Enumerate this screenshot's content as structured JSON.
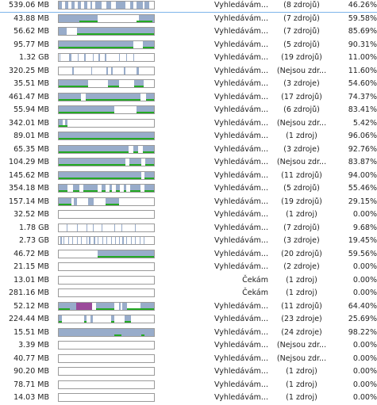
{
  "colors": {
    "segment": "#98acca",
    "segment_alt": "#9b4a9a",
    "progress": "#23a923",
    "selection_line": "#7eb4ea"
  },
  "rows": [
    {
      "size": "539.06 MB",
      "status": "Vyhledávám...",
      "sources": "(8 zdrojů)",
      "percent": "46.26%",
      "sel": true,
      "segs": [
        [
          0,
          0.03
        ],
        [
          0.07,
          0.1
        ],
        [
          0.13,
          0.17
        ],
        [
          0.2,
          0.23
        ],
        [
          0.27,
          0.3
        ],
        [
          0.33,
          0.35
        ],
        [
          0.38,
          0.45
        ],
        [
          0.5,
          0.55
        ],
        [
          0.6,
          0.7
        ],
        [
          0.75,
          0.78
        ],
        [
          0.82,
          0.88
        ],
        [
          0.9,
          0.95
        ]
      ],
      "green": []
    },
    {
      "size": "43.88 MB",
      "status": "Vyhledávám...",
      "sources": "(7 zdrojů)",
      "percent": "59.58%",
      "segs": [
        [
          0,
          0.41
        ],
        [
          0.84,
          1
        ]
      ],
      "green": [
        [
          0.22,
          0.41
        ],
        [
          0.82,
          0.98
        ]
      ]
    },
    {
      "size": "56.62 MB",
      "status": "Vyhledávám...",
      "sources": "(7 zdrojů)",
      "percent": "85.69%",
      "segs": [
        [
          0,
          0.08
        ],
        [
          0.19,
          1
        ]
      ],
      "green": [
        [
          0.19,
          1
        ]
      ]
    },
    {
      "size": "95.77 MB",
      "status": "Vyhledávám...",
      "sources": "(5 zdrojů)",
      "percent": "90.31%",
      "segs": [
        [
          0,
          0.78
        ],
        [
          0.88,
          1
        ]
      ],
      "green": [
        [
          0,
          0.78
        ],
        [
          0.88,
          1
        ]
      ]
    },
    {
      "size": "1.32 GB",
      "status": "Vyhledávám...",
      "sources": "(19 zdrojů)",
      "percent": "11.00%",
      "segs": [
        [
          0.01,
          0.02
        ],
        [
          0.11,
          0.13
        ],
        [
          0.2,
          0.21
        ],
        [
          0.27,
          0.28
        ],
        [
          0.36,
          0.37
        ],
        [
          0.42,
          0.43
        ],
        [
          0.48,
          0.5
        ],
        [
          0.63,
          0.64
        ],
        [
          0.71,
          0.72
        ],
        [
          0.78,
          0.79
        ]
      ],
      "green": []
    },
    {
      "size": "320.25 MB",
      "status": "Vyhledávám...",
      "sources": "(Nejsou zdr...",
      "percent": "11.60%",
      "segs": [
        [
          0.14,
          0.16
        ],
        [
          0.34,
          0.35
        ],
        [
          0.5,
          0.52
        ],
        [
          0.55,
          0.57
        ],
        [
          0.68,
          0.7
        ],
        [
          0.82,
          0.84
        ]
      ],
      "green": []
    },
    {
      "size": "35.51 MB",
      "status": "Vyhledávám...",
      "sources": "(3 zdroje)",
      "percent": "54.60%",
      "segs": [
        [
          0,
          0.31
        ],
        [
          0.52,
          0.63
        ],
        [
          0.79,
          0.89
        ]
      ],
      "green": [
        [
          0,
          0.31
        ],
        [
          0.52,
          0.63
        ],
        [
          0.79,
          0.89
        ]
      ]
    },
    {
      "size": "461.47 MB",
      "status": "Vyhledávám...",
      "sources": "(17 zdrojů)",
      "percent": "74.37%",
      "segs": [
        [
          0,
          0.23
        ],
        [
          0.28,
          0.86
        ],
        [
          0.92,
          1
        ]
      ],
      "green": [
        [
          0,
          0.23
        ],
        [
          0.28,
          0.86
        ],
        [
          0.92,
          1
        ]
      ]
    },
    {
      "size": "55.94 MB",
      "status": "Vyhledávám...",
      "sources": "(6 zdrojů)",
      "percent": "83.41%",
      "segs": [
        [
          0,
          0.58
        ],
        [
          0.82,
          1
        ]
      ],
      "green": [
        [
          0,
          0.58
        ],
        [
          0.82,
          1
        ]
      ]
    },
    {
      "size": "342.01 MB",
      "status": "Vyhledávám...",
      "sources": "(Nejsou zdr...",
      "percent": "5.42%",
      "segs": [
        [
          0,
          0.04
        ],
        [
          0.07,
          0.09
        ]
      ],
      "green": [
        [
          0,
          0.09
        ]
      ]
    },
    {
      "size": "89.01 MB",
      "status": "Vyhledávám...",
      "sources": "(1 zdroj)",
      "percent": "96.06%",
      "segs": [
        [
          0,
          1
        ]
      ],
      "green": [
        [
          0,
          1
        ]
      ]
    },
    {
      "size": "65.35 MB",
      "status": "Vyhledávám...",
      "sources": "(3 zdroje)",
      "percent": "92.76%",
      "segs": [
        [
          0,
          0.73
        ],
        [
          0.78,
          0.83
        ],
        [
          0.88,
          1
        ]
      ],
      "green": [
        [
          0,
          0.73
        ],
        [
          0.78,
          0.83
        ],
        [
          0.88,
          1
        ]
      ]
    },
    {
      "size": "104.29 MB",
      "status": "Vyhledávám...",
      "sources": "(Nejsou zdr...",
      "percent": "83.87%",
      "segs": [
        [
          0,
          0.7
        ],
        [
          0.74,
          0.87
        ],
        [
          0.91,
          1
        ]
      ],
      "green": [
        [
          0,
          0.7
        ],
        [
          0.74,
          0.87
        ],
        [
          0.91,
          1
        ]
      ]
    },
    {
      "size": "145.62 MB",
      "status": "Vyhledávám...",
      "sources": "(11 zdrojů)",
      "percent": "94.00%",
      "segs": [
        [
          0,
          0.87
        ],
        [
          0.9,
          1
        ]
      ],
      "green": [
        [
          0,
          0.87
        ],
        [
          0.9,
          1
        ]
      ]
    },
    {
      "size": "354.18 MB",
      "status": "Vyhledávám...",
      "sources": "(5 zdrojů)",
      "percent": "55.46%",
      "segs": [
        [
          0,
          0.09
        ],
        [
          0.15,
          0.22
        ],
        [
          0.26,
          0.41
        ],
        [
          0.45,
          0.49
        ],
        [
          0.53,
          0.56
        ],
        [
          0.6,
          0.64
        ],
        [
          0.68,
          0.71
        ],
        [
          0.75,
          0.86
        ],
        [
          0.9,
          1
        ]
      ],
      "green": [
        [
          0,
          0.09
        ],
        [
          0.15,
          0.22
        ],
        [
          0.26,
          0.41
        ],
        [
          0.45,
          0.49
        ],
        [
          0.53,
          0.56
        ],
        [
          0.6,
          0.64
        ],
        [
          0.68,
          0.71
        ],
        [
          0.75,
          0.86
        ],
        [
          0.9,
          1
        ]
      ]
    },
    {
      "size": "157.14 MB",
      "status": "Vyhledávám...",
      "sources": "(19 zdrojů)",
      "percent": "29.15%",
      "segs": [
        [
          0,
          0.13
        ],
        [
          0.16,
          0.19
        ],
        [
          0.31,
          0.37
        ],
        [
          0.49,
          0.63
        ]
      ],
      "green": [
        [
          0,
          0.13
        ],
        [
          0.49,
          0.63
        ]
      ]
    },
    {
      "size": "32.52 MB",
      "status": "Vyhledávám...",
      "sources": "(1 zdroj)",
      "percent": "0.00%",
      "segs": [],
      "green": []
    },
    {
      "size": "1.78 GB",
      "status": "Vyhledávám...",
      "sources": "(7 zdrojů)",
      "percent": "9.68%",
      "segs": [
        [
          0.08,
          0.09
        ],
        [
          0.19,
          0.2
        ],
        [
          0.29,
          0.3
        ],
        [
          0.36,
          0.37
        ],
        [
          0.45,
          0.46
        ],
        [
          0.58,
          0.59
        ],
        [
          0.66,
          0.67
        ],
        [
          0.8,
          0.81
        ]
      ],
      "green": []
    },
    {
      "size": "2.73 GB",
      "status": "Vyhledávám...",
      "sources": "(3 zdroje)",
      "percent": "19.45%",
      "segs": [
        [
          0.02,
          0.03
        ],
        [
          0.05,
          0.06
        ],
        [
          0.1,
          0.11
        ],
        [
          0.14,
          0.15
        ],
        [
          0.19,
          0.2
        ],
        [
          0.23,
          0.24
        ],
        [
          0.29,
          0.3
        ],
        [
          0.32,
          0.33
        ],
        [
          0.37,
          0.38
        ],
        [
          0.41,
          0.42
        ],
        [
          0.46,
          0.47
        ],
        [
          0.5,
          0.51
        ],
        [
          0.55,
          0.56
        ],
        [
          0.59,
          0.6
        ],
        [
          0.63,
          0.64
        ],
        [
          0.67,
          0.68
        ],
        [
          0.71,
          0.72
        ],
        [
          0.76,
          0.77
        ],
        [
          0.8,
          0.81
        ],
        [
          0.85,
          0.86
        ],
        [
          0.89,
          0.9
        ]
      ],
      "green": []
    },
    {
      "size": "46.72 MB",
      "status": "Vyhledávám...",
      "sources": "(20 zdrojů)",
      "percent": "59.56%",
      "segs": [
        [
          0.41,
          1
        ]
      ],
      "green": [
        [
          0.41,
          1
        ]
      ]
    },
    {
      "size": "21.15 MB",
      "status": "Vyhledávám...",
      "sources": "(2 zdroje)",
      "percent": "0.00%",
      "segs": [],
      "green": []
    },
    {
      "size": "13.01 MB",
      "status": "Čekám",
      "sources": "(1 zdroj)",
      "percent": "0.00%",
      "segs": [],
      "green": []
    },
    {
      "size": "281.16 MB",
      "status": "Čekám",
      "sources": "(1 zdroj)",
      "percent": "0.00%",
      "segs": [],
      "green": []
    },
    {
      "size": "52.12 MB",
      "status": "Vyhledávám...",
      "sources": "(11 zdrojů)",
      "percent": "64.40%",
      "segs": [
        [
          0,
          0.18
        ],
        [
          0.39,
          0.58
        ],
        [
          0.63,
          0.65
        ],
        [
          0.67,
          0.72
        ],
        [
          0.86,
          1
        ]
      ],
      "magenta": [
        [
          0.18,
          0.35
        ]
      ],
      "green": [
        [
          0,
          0.12
        ],
        [
          0.39,
          0.58
        ],
        [
          0.72,
          1
        ]
      ]
    },
    {
      "size": "224.44 MB",
      "status": "Vyhledávám...",
      "sources": "(23 zdroje)",
      "percent": "25.69%",
      "segs": [
        [
          0,
          0.03
        ],
        [
          0.27,
          0.29
        ],
        [
          0.33,
          0.36
        ],
        [
          0.55,
          0.58
        ],
        [
          0.69,
          0.76
        ]
      ],
      "green": [
        [
          0,
          0.03
        ],
        [
          0.27,
          0.29
        ],
        [
          0.55,
          0.58
        ],
        [
          0.69,
          0.76
        ]
      ]
    },
    {
      "size": "15.51 MB",
      "status": "Vyhledávám...",
      "sources": "(24 zdroje)",
      "percent": "98.22%",
      "segs": [
        [
          0,
          1
        ]
      ],
      "green": [
        [
          0.58,
          0.66
        ],
        [
          0.87,
          0.9
        ]
      ]
    },
    {
      "size": "3.39 MB",
      "status": "Vyhledávám...",
      "sources": "(Nejsou zdr...",
      "percent": "0.00%",
      "segs": [],
      "green": []
    },
    {
      "size": "40.77 MB",
      "status": "Vyhledávám...",
      "sources": "(Nejsou zdr...",
      "percent": "0.00%",
      "segs": [],
      "green": []
    },
    {
      "size": "90.20 MB",
      "status": "Vyhledávám...",
      "sources": "(1 zdroj)",
      "percent": "0.00%",
      "segs": [],
      "green": []
    },
    {
      "size": "78.71 MB",
      "status": "Vyhledávám...",
      "sources": "(1 zdroj)",
      "percent": "0.00%",
      "segs": [],
      "green": []
    },
    {
      "size": "14.03 MB",
      "status": "Vyhledávám...",
      "sources": "(1 zdroj)",
      "percent": "0.00%",
      "segs": [],
      "green": []
    }
  ]
}
